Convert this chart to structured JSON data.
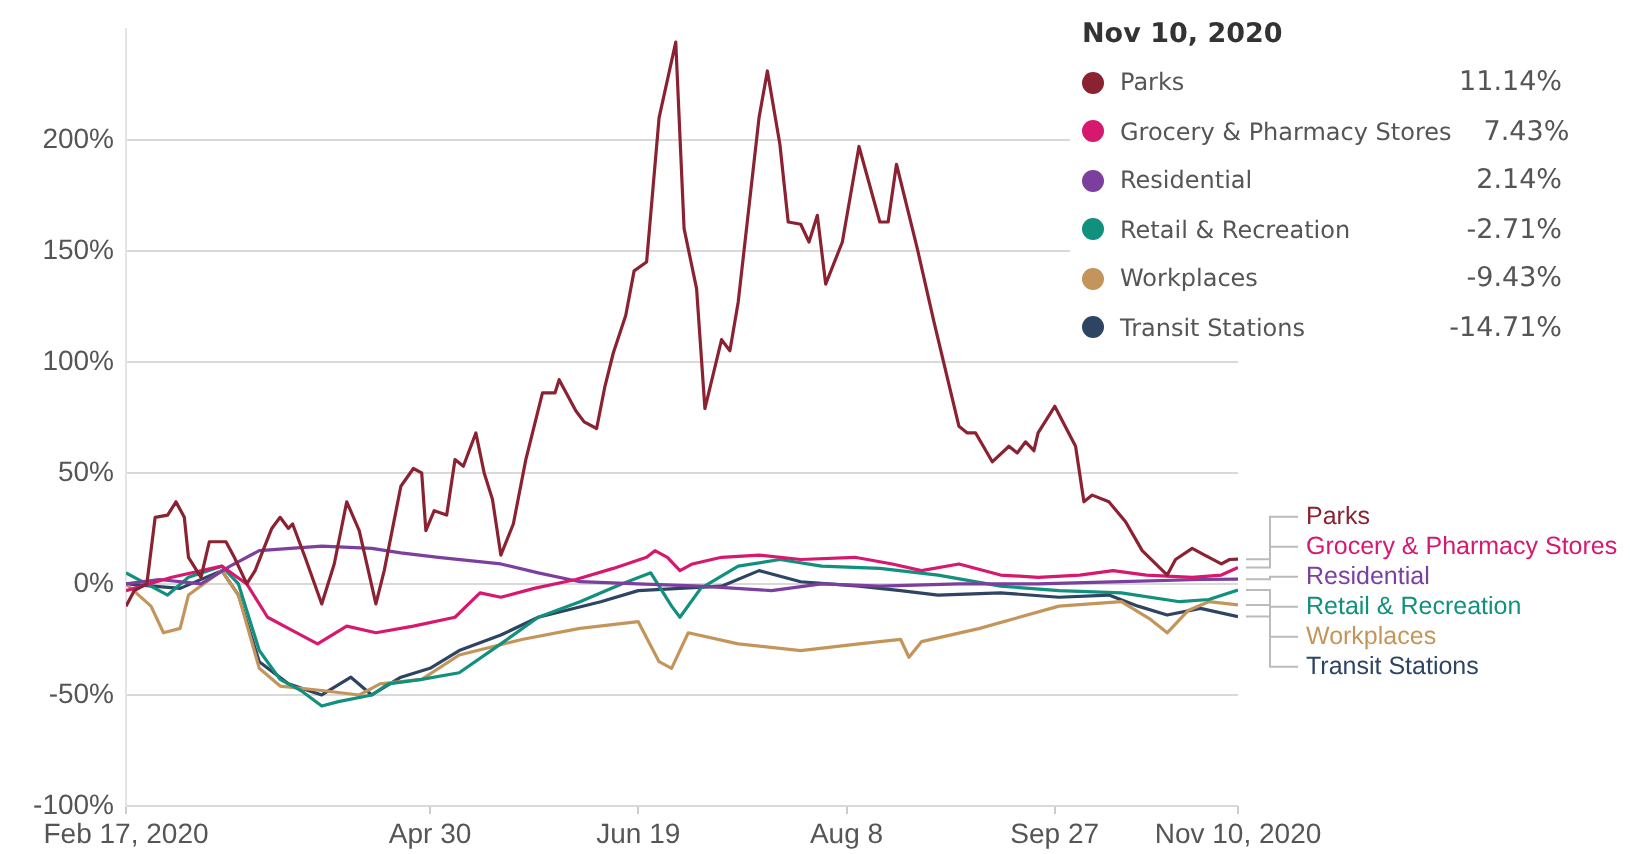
{
  "chart_data": {
    "type": "line",
    "xlim": [
      "2020-02-17",
      "2020-11-10"
    ],
    "xticks": [
      {
        "value": "2020-02-17",
        "label": "Feb 17, 2020"
      },
      {
        "value": "2020-04-30",
        "label": "Apr 30"
      },
      {
        "value": "2020-06-19",
        "label": "Jun 19"
      },
      {
        "value": "2020-08-08",
        "label": "Aug 8"
      },
      {
        "value": "2020-09-27",
        "label": "Sep 27"
      },
      {
        "value": "2020-11-10",
        "label": "Nov 10, 2020"
      }
    ],
    "ylim": [
      -100,
      250
    ],
    "yticks": [
      {
        "value": -100,
        "label": "-100%"
      },
      {
        "value": -50,
        "label": "-50%"
      },
      {
        "value": 0,
        "label": "0%"
      },
      {
        "value": 50,
        "label": "50%"
      },
      {
        "value": 100,
        "label": "100%"
      },
      {
        "value": 150,
        "label": "150%"
      },
      {
        "value": 200,
        "label": "200%"
      }
    ],
    "grid": "y",
    "legend": "top right",
    "legend_title": "Nov 10, 2020",
    "annotations": [
      "11.14%",
      "7.43%",
      "2.14%",
      "-2.71%",
      "-9.43%",
      "-14.71%"
    ],
    "series": [
      {
        "name": "Parks",
        "color": "#8b2232",
        "x": [
          "2020-02-17",
          "2020-02-19",
          "2020-02-22",
          "2020-02-24",
          "2020-02-27",
          "2020-02-29",
          "2020-03-02",
          "2020-03-03",
          "2020-03-06",
          "2020-03-08",
          "2020-03-12",
          "2020-03-14",
          "2020-03-17",
          "2020-03-19",
          "2020-03-23",
          "2020-03-25",
          "2020-03-27",
          "2020-03-28",
          "2020-03-31",
          "2020-04-04",
          "2020-04-07",
          "2020-04-10",
          "2020-04-13",
          "2020-04-17",
          "2020-04-19",
          "2020-04-23",
          "2020-04-26",
          "2020-04-28",
          "2020-04-29",
          "2020-05-01",
          "2020-05-04",
          "2020-05-06",
          "2020-05-08",
          "2020-05-11",
          "2020-05-13",
          "2020-05-15",
          "2020-05-17",
          "2020-05-20",
          "2020-05-23",
          "2020-05-27",
          "2020-05-30",
          "2020-05-31",
          "2020-06-04",
          "2020-06-06",
          "2020-06-09",
          "2020-06-11",
          "2020-06-13",
          "2020-06-16",
          "2020-06-18",
          "2020-06-21",
          "2020-06-24",
          "2020-06-28",
          "2020-06-30",
          "2020-07-03",
          "2020-07-05",
          "2020-07-09",
          "2020-07-11",
          "2020-07-13",
          "2020-07-18",
          "2020-07-20",
          "2020-07-23",
          "2020-07-25",
          "2020-07-28",
          "2020-07-30",
          "2020-08-01",
          "2020-08-03",
          "2020-08-07",
          "2020-08-11",
          "2020-08-16",
          "2020-08-18",
          "2020-08-20",
          "2020-08-25",
          "2020-08-29",
          "2020-09-04",
          "2020-09-06",
          "2020-09-08",
          "2020-09-12",
          "2020-09-16",
          "2020-09-18",
          "2020-09-20",
          "2020-09-22",
          "2020-09-23",
          "2020-09-27",
          "2020-10-02",
          "2020-10-04",
          "2020-10-06",
          "2020-10-10",
          "2020-10-14",
          "2020-10-18",
          "2020-10-24",
          "2020-10-26",
          "2020-10-30",
          "2020-11-02",
          "2020-11-06",
          "2020-11-08",
          "2020-11-10"
        ],
        "values": [
          -10,
          -3,
          0,
          30,
          31,
          37,
          30,
          12,
          3,
          19,
          19,
          12,
          0,
          6,
          25,
          30,
          25,
          27,
          12,
          -9,
          9,
          37,
          24,
          -9,
          6,
          44,
          52,
          50,
          24,
          33,
          31,
          56,
          53,
          68,
          50,
          38,
          13,
          27,
          56,
          86,
          86,
          92,
          78,
          73,
          70,
          89,
          104,
          121,
          141,
          145,
          210,
          244,
          160,
          133,
          79,
          110,
          105,
          127,
          210,
          231,
          198,
          163,
          162,
          154,
          166,
          135,
          154,
          197,
          163,
          163,
          189,
          151,
          118,
          71,
          68,
          68,
          55,
          62,
          59,
          64,
          60,
          68,
          80,
          62,
          37,
          40,
          37,
          28,
          15,
          4,
          11,
          16,
          13,
          9,
          11,
          11.14
        ]
      },
      {
        "name": "Grocery & Pharmacy Stores",
        "color": "#d6186f",
        "x": [
          "2020-02-17",
          "2020-02-28",
          "2020-03-11",
          "2020-03-17",
          "2020-03-22",
          "2020-03-28",
          "2020-04-03",
          "2020-04-10",
          "2020-04-17",
          "2020-04-26",
          "2020-05-06",
          "2020-05-12",
          "2020-05-17",
          "2020-05-25",
          "2020-06-04",
          "2020-06-13",
          "2020-06-21",
          "2020-06-23",
          "2020-06-26",
          "2020-06-29",
          "2020-07-02",
          "2020-07-09",
          "2020-07-18",
          "2020-07-28",
          "2020-08-10",
          "2020-08-19",
          "2020-08-26",
          "2020-09-04",
          "2020-09-14",
          "2020-09-23",
          "2020-10-03",
          "2020-10-11",
          "2020-10-19",
          "2020-10-30",
          "2020-11-06",
          "2020-11-10"
        ],
        "values": [
          -3,
          3,
          8,
          0,
          -15,
          -21,
          -27,
          -19,
          -22,
          -19,
          -15,
          -4,
          -6,
          -2,
          2,
          7,
          12,
          15,
          12,
          6,
          9,
          12,
          13,
          11,
          12,
          9,
          6,
          9,
          4,
          3,
          4,
          6,
          4,
          3,
          4,
          7.43
        ]
      },
      {
        "name": "Residential",
        "color": "#7b3f9e",
        "x": [
          "2020-02-17",
          "2020-02-25",
          "2020-03-06",
          "2020-03-13",
          "2020-03-20",
          "2020-04-04",
          "2020-04-16",
          "2020-04-23",
          "2020-05-02",
          "2020-05-17",
          "2020-05-26",
          "2020-06-05",
          "2020-06-19",
          "2020-07-04",
          "2020-07-21",
          "2020-08-02",
          "2020-08-16",
          "2020-09-04",
          "2020-09-23",
          "2020-10-13",
          "2020-11-01",
          "2020-11-10"
        ],
        "values": [
          0,
          2,
          0,
          8,
          15,
          17,
          16,
          14,
          12,
          9,
          5,
          1,
          0,
          -1,
          -3,
          0,
          -1,
          0,
          0,
          1,
          2,
          2.14
        ]
      },
      {
        "name": "Retail & Recreation",
        "color": "#11907d",
        "x": [
          "2020-02-17",
          "2020-02-27",
          "2020-03-03",
          "2020-03-11",
          "2020-03-15",
          "2020-03-20",
          "2020-03-25",
          "2020-03-30",
          "2020-04-04",
          "2020-04-08",
          "2020-04-16",
          "2020-04-20",
          "2020-04-28",
          "2020-05-07",
          "2020-05-17",
          "2020-05-26",
          "2020-06-05",
          "2020-06-15",
          "2020-06-22",
          "2020-06-27",
          "2020-06-29",
          "2020-07-04",
          "2020-07-13",
          "2020-07-23",
          "2020-08-02",
          "2020-08-16",
          "2020-08-30",
          "2020-09-14",
          "2020-09-28",
          "2020-10-13",
          "2020-10-27",
          "2020-11-03",
          "2020-11-10"
        ],
        "values": [
          5,
          -5,
          3,
          8,
          0,
          -30,
          -43,
          -48,
          -55,
          -53,
          -50,
          -45,
          -43,
          -40,
          -27,
          -15,
          -8,
          0,
          5,
          -10,
          -15,
          -2,
          8,
          11,
          8,
          7,
          4,
          -1,
          -3,
          -4,
          -8,
          -7,
          -2.71
        ]
      },
      {
        "name": "Workplaces",
        "color": "#c4955a",
        "x": [
          "2020-02-17",
          "2020-02-23",
          "2020-02-26",
          "2020-03-01",
          "2020-03-03",
          "2020-03-11",
          "2020-03-15",
          "2020-03-20",
          "2020-03-25",
          "2020-04-04",
          "2020-04-13",
          "2020-04-18",
          "2020-04-28",
          "2020-05-07",
          "2020-05-22",
          "2020-06-05",
          "2020-06-19",
          "2020-06-24",
          "2020-06-27",
          "2020-07-01",
          "2020-07-13",
          "2020-07-28",
          "2020-08-11",
          "2020-08-21",
          "2020-08-23",
          "2020-08-26",
          "2020-09-09",
          "2020-09-28",
          "2020-10-13",
          "2020-10-20",
          "2020-10-24",
          "2020-10-29",
          "2020-11-03",
          "2020-11-10"
        ],
        "values": [
          0,
          -10,
          -22,
          -20,
          -5,
          6,
          -5,
          -38,
          -46,
          -48,
          -50,
          -45,
          -43,
          -32,
          -25,
          -20,
          -17,
          -35,
          -38,
          -22,
          -27,
          -30,
          -27,
          -25,
          -33,
          -26,
          -20,
          -10,
          -8,
          -16,
          -22,
          -12,
          -8,
          -9.43
        ]
      },
      {
        "name": "Transit Stations",
        "color": "#2d4463",
        "x": [
          "2020-02-17",
          "2020-03-01",
          "2020-03-11",
          "2020-03-15",
          "2020-03-20",
          "2020-03-27",
          "2020-04-04",
          "2020-04-11",
          "2020-04-16",
          "2020-04-23",
          "2020-04-30",
          "2020-05-07",
          "2020-05-17",
          "2020-05-26",
          "2020-06-10",
          "2020-06-19",
          "2020-06-29",
          "2020-07-09",
          "2020-07-18",
          "2020-07-28",
          "2020-08-11",
          "2020-08-21",
          "2020-08-30",
          "2020-09-14",
          "2020-09-28",
          "2020-10-10",
          "2020-10-17",
          "2020-10-24",
          "2020-11-01",
          "2020-11-10"
        ],
        "values": [
          0,
          -2,
          6,
          -5,
          -35,
          -45,
          -50,
          -42,
          -50,
          -42,
          -38,
          -30,
          -23,
          -15,
          -8,
          -3,
          -2,
          -1,
          6,
          1,
          -1,
          -3,
          -5,
          -4,
          -6,
          -5,
          -10,
          -14,
          -11,
          -14.71
        ]
      }
    ]
  }
}
